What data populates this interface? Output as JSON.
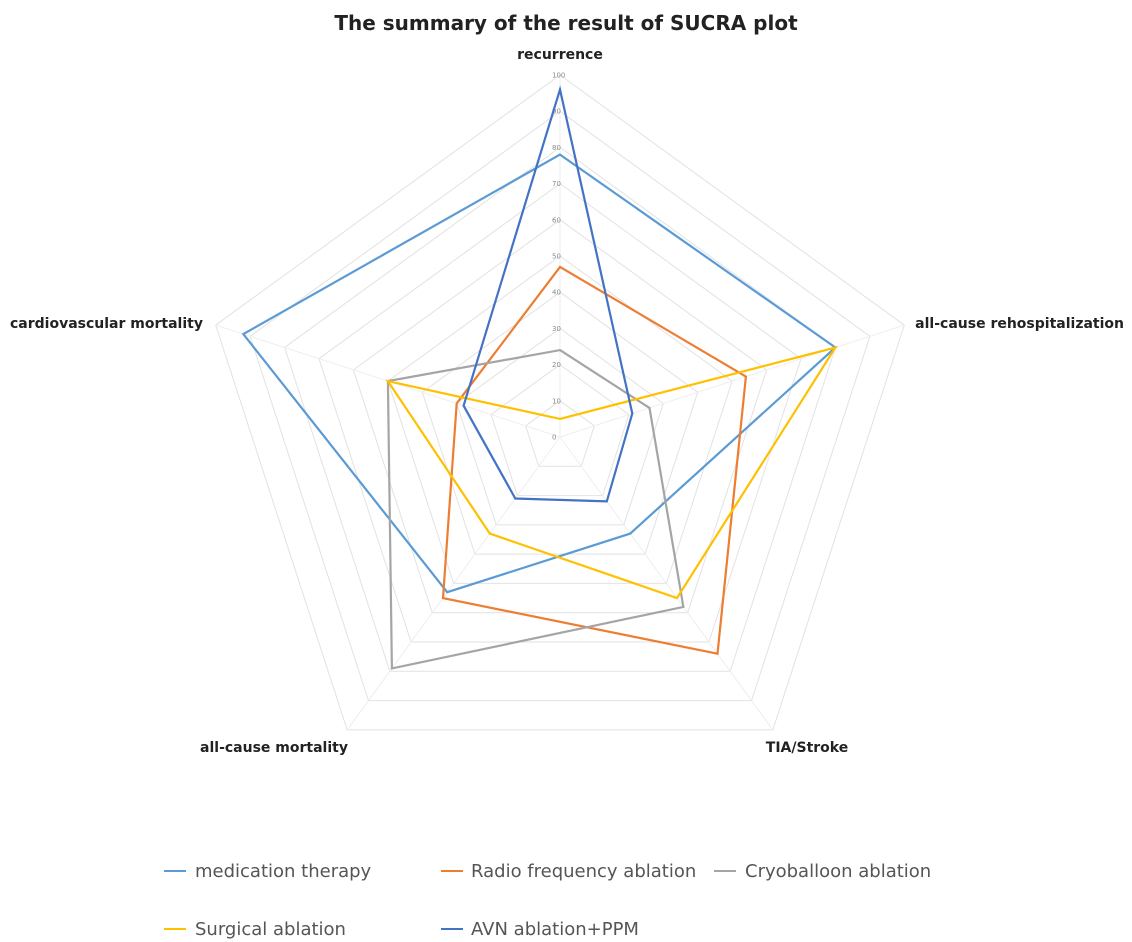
{
  "chart_data": {
    "type": "radar",
    "title": "The summary of the result of SUCRA plot",
    "axes": [
      "recurrence",
      "all-cause rehospitalization",
      "TIA/Stroke",
      "all-cause mortality",
      "cardiovascular mortality"
    ],
    "r_range": [
      0,
      100
    ],
    "ticks": [
      "0",
      "10",
      "20",
      "30",
      "40",
      "50",
      "60",
      "70",
      "80",
      "90",
      "100"
    ],
    "grid": true,
    "legend_position": "bottom",
    "series": [
      {
        "name": "medication therapy",
        "color": "#5b9bd5",
        "values": [
          78,
          80,
          33,
          53,
          92
        ]
      },
      {
        "name": "Radio frequency ablation",
        "color": "#ed7d31",
        "values": [
          47,
          54,
          74,
          55,
          30
        ]
      },
      {
        "name": "Cryoballoon ablation",
        "color": "#a5a5a5",
        "values": [
          24,
          26,
          58,
          79,
          50
        ]
      },
      {
        "name": "Surgical ablation",
        "color": "#ffc000",
        "values": [
          5,
          80,
          55,
          33,
          50
        ]
      },
      {
        "name": "AVN ablation+PPM",
        "color": "#4472c4",
        "values": [
          96,
          21,
          22,
          21,
          28
        ]
      }
    ]
  }
}
